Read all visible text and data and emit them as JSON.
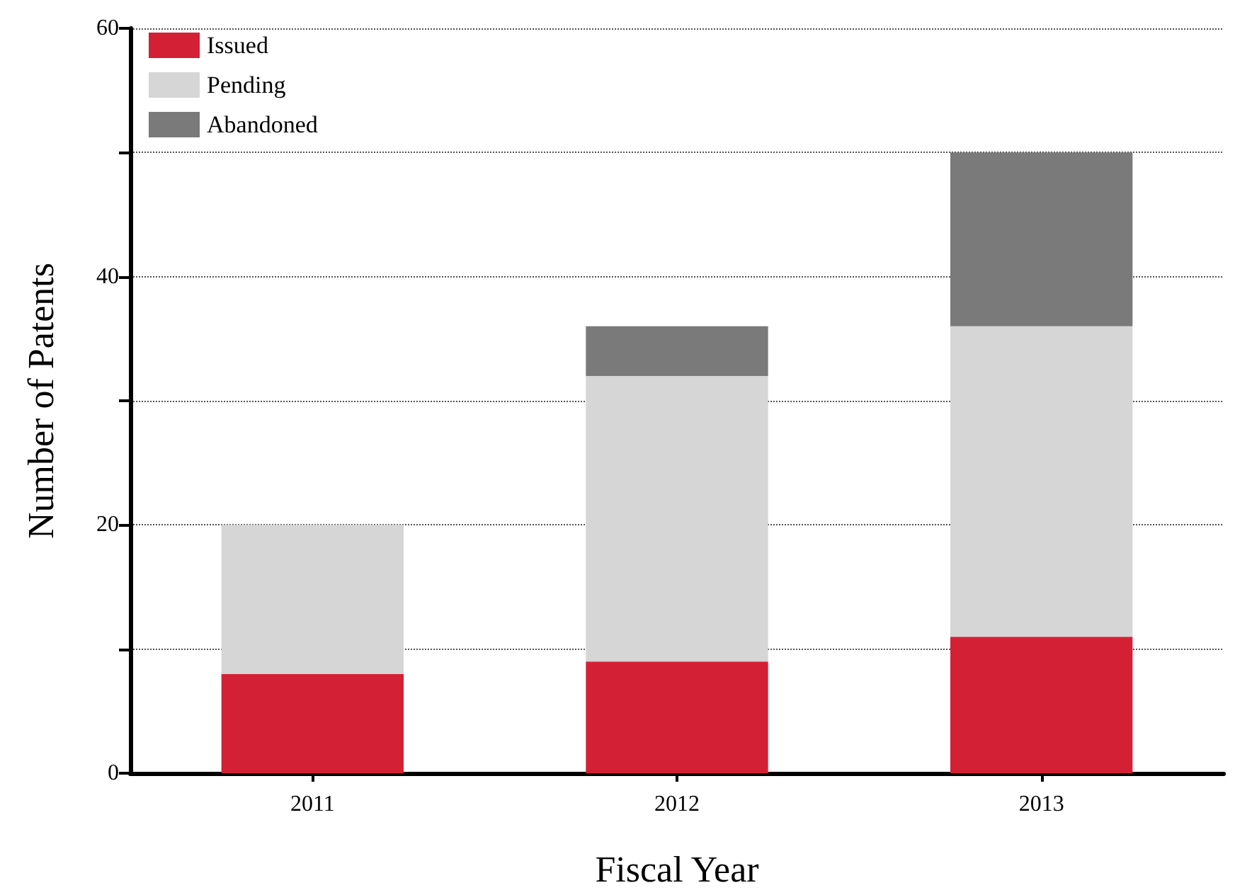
{
  "chart_data": {
    "type": "bar",
    "stacked": true,
    "xlabel": "Fiscal Year",
    "ylabel": "Number of Patents",
    "categories": [
      "2011",
      "2012",
      "2013"
    ],
    "series": [
      {
        "name": "Issued",
        "color": "#d42035",
        "values": [
          8,
          9,
          11
        ]
      },
      {
        "name": "Pending",
        "color": "#d6d6d6",
        "values": [
          12,
          23,
          25
        ]
      },
      {
        "name": "Abandoned",
        "color": "#7a7a7a",
        "values": [
          0,
          4,
          14
        ]
      }
    ],
    "ylim": [
      0,
      60
    ],
    "yticks": [
      0,
      {
        "value": 10,
        "label": null
      },
      20,
      {
        "value": 30,
        "label": null
      },
      40,
      {
        "value": 50,
        "label": null
      },
      60
    ],
    "grid": "y",
    "legend": "top left"
  }
}
